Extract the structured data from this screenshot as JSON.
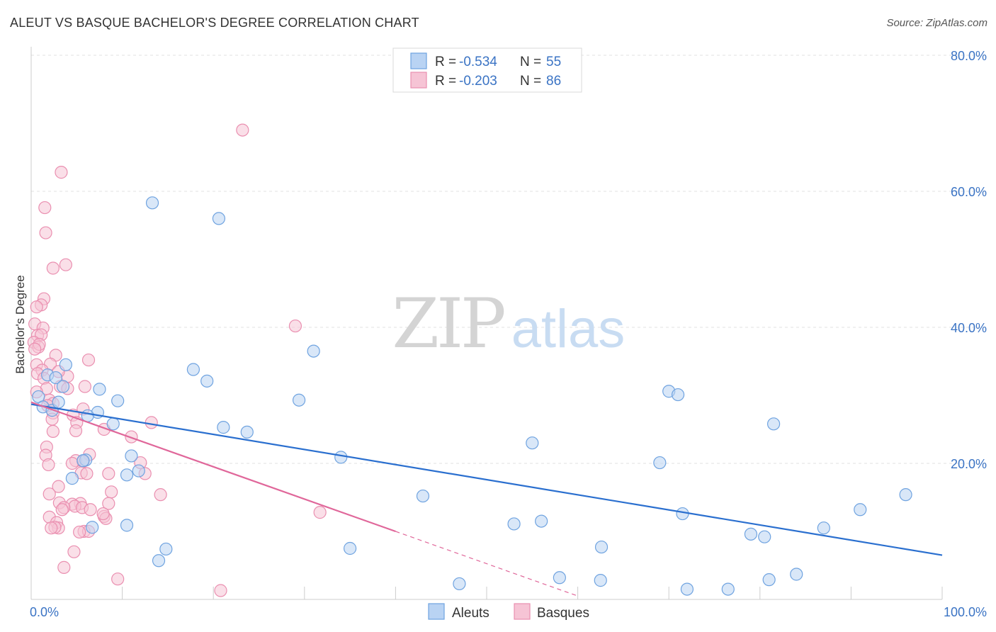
{
  "title": "ALEUT VS BASQUE BACHELOR'S DEGREE CORRELATION CHART",
  "source": "Source: ZipAtlas.com",
  "watermark": {
    "zip": "ZIP",
    "atlas": "atlas"
  },
  "chart_data": {
    "type": "scatter",
    "ylabel": "Bachelor's Degree",
    "xlim": [
      0,
      100
    ],
    "ylim": [
      0,
      80
    ],
    "x_tick_labels": [
      "0.0%",
      "100.0%"
    ],
    "y_ticks": [
      20,
      40,
      60,
      80
    ],
    "y_tick_labels": [
      "20.0%",
      "40.0%",
      "60.0%",
      "80.0%"
    ],
    "grid": true,
    "legend": {
      "placement": "top-center",
      "rows": [
        {
          "r_label": "R = ",
          "r_value": "-0.534",
          "n_label": "N = ",
          "n_value": "55"
        },
        {
          "r_label": "R = ",
          "r_value": "-0.203",
          "n_label": "N = ",
          "n_value": "86"
        }
      ]
    },
    "series": [
      {
        "name": "Aleuts",
        "color": "#6fa3e0",
        "fill": "#b9d3f3",
        "line_color": "#2a6fcf",
        "trend": {
          "x0": 0,
          "y0": 28.7,
          "x1": 100,
          "y1": 6.5
        },
        "points": [
          [
            13.3,
            58.3
          ],
          [
            20.6,
            56.0
          ],
          [
            1.8,
            33.0
          ],
          [
            3.8,
            34.5
          ],
          [
            2.7,
            32.6
          ],
          [
            3.5,
            31.3
          ],
          [
            0.8,
            29.8
          ],
          [
            1.3,
            28.3
          ],
          [
            2.3,
            27.8
          ],
          [
            3.0,
            29.0
          ],
          [
            7.5,
            30.9
          ],
          [
            9.5,
            29.2
          ],
          [
            7.3,
            27.5
          ],
          [
            6.2,
            27.0
          ],
          [
            9.0,
            25.8
          ],
          [
            17.8,
            33.8
          ],
          [
            19.3,
            32.1
          ],
          [
            21.1,
            25.3
          ],
          [
            23.7,
            24.6
          ],
          [
            29.4,
            29.3
          ],
          [
            31.0,
            36.5
          ],
          [
            34.0,
            20.9
          ],
          [
            6.0,
            20.5
          ],
          [
            11.0,
            21.1
          ],
          [
            11.8,
            18.9
          ],
          [
            10.5,
            18.3
          ],
          [
            4.5,
            17.8
          ],
          [
            10.5,
            10.9
          ],
          [
            6.7,
            10.6
          ],
          [
            14.8,
            7.4
          ],
          [
            14.0,
            5.7
          ],
          [
            35.0,
            7.5
          ],
          [
            43.0,
            15.2
          ],
          [
            47.0,
            2.3
          ],
          [
            53.0,
            11.1
          ],
          [
            55.0,
            23.0
          ],
          [
            56.0,
            11.5
          ],
          [
            58.0,
            3.2
          ],
          [
            62.5,
            2.8
          ],
          [
            62.6,
            7.7
          ],
          [
            69.0,
            20.1
          ],
          [
            70.0,
            30.6
          ],
          [
            71.0,
            30.1
          ],
          [
            71.5,
            12.6
          ],
          [
            72.0,
            1.5
          ],
          [
            76.5,
            1.5
          ],
          [
            79.0,
            9.6
          ],
          [
            80.5,
            9.2
          ],
          [
            81.5,
            25.8
          ],
          [
            81.0,
            2.9
          ],
          [
            84.0,
            3.7
          ],
          [
            87.0,
            10.5
          ],
          [
            91.0,
            13.2
          ],
          [
            96.0,
            15.4
          ],
          [
            5.7,
            20.4
          ]
        ]
      },
      {
        "name": "Basques",
        "color": "#ea8fb0",
        "fill": "#f6c4d5",
        "line_color": "#e0679a",
        "trend": {
          "x0": 0,
          "y0": 29.0,
          "x1": 40,
          "y1": 10.0
        },
        "trend_dashed": {
          "x0": 40,
          "y0": 10.0,
          "x1": 60,
          "y1": 0.5
        },
        "points": [
          [
            23.2,
            69.0
          ],
          [
            3.3,
            62.8
          ],
          [
            1.5,
            57.6
          ],
          [
            1.6,
            53.9
          ],
          [
            3.8,
            49.2
          ],
          [
            2.4,
            48.7
          ],
          [
            1.4,
            44.2
          ],
          [
            1.1,
            43.3
          ],
          [
            0.6,
            43.0
          ],
          [
            0.4,
            40.5
          ],
          [
            1.3,
            39.9
          ],
          [
            0.7,
            38.8
          ],
          [
            1.1,
            38.9
          ],
          [
            0.3,
            37.8
          ],
          [
            0.8,
            37.1
          ],
          [
            0.9,
            37.5
          ],
          [
            0.4,
            36.8
          ],
          [
            2.7,
            35.9
          ],
          [
            6.3,
            35.2
          ],
          [
            2.1,
            34.6
          ],
          [
            0.6,
            34.5
          ],
          [
            1.2,
            33.7
          ],
          [
            0.7,
            33.2
          ],
          [
            4.0,
            32.8
          ],
          [
            1.4,
            32.5
          ],
          [
            3.0,
            33.5
          ],
          [
            3.2,
            31.3
          ],
          [
            5.9,
            31.3
          ],
          [
            4.0,
            31.0
          ],
          [
            1.7,
            31.0
          ],
          [
            0.6,
            30.5
          ],
          [
            2.0,
            29.3
          ],
          [
            2.4,
            28.8
          ],
          [
            1.8,
            28.5
          ],
          [
            5.7,
            28.0
          ],
          [
            2.4,
            27.4
          ],
          [
            4.6,
            27.1
          ],
          [
            2.3,
            26.5
          ],
          [
            5.0,
            26.0
          ],
          [
            13.2,
            26.0
          ],
          [
            4.9,
            24.8
          ],
          [
            2.4,
            24.7
          ],
          [
            8.0,
            25.0
          ],
          [
            11.0,
            23.9
          ],
          [
            29.0,
            40.2
          ],
          [
            1.7,
            22.4
          ],
          [
            1.6,
            21.2
          ],
          [
            6.4,
            21.3
          ],
          [
            4.9,
            20.4
          ],
          [
            5.7,
            20.3
          ],
          [
            4.5,
            20.0
          ],
          [
            1.9,
            19.8
          ],
          [
            5.5,
            18.6
          ],
          [
            6.1,
            18.5
          ],
          [
            8.5,
            18.5
          ],
          [
            12.0,
            20.1
          ],
          [
            12.5,
            18.5
          ],
          [
            3.0,
            16.6
          ],
          [
            8.8,
            15.8
          ],
          [
            2.0,
            15.5
          ],
          [
            14.2,
            15.4
          ],
          [
            5.4,
            14.1
          ],
          [
            3.1,
            14.2
          ],
          [
            4.5,
            14.0
          ],
          [
            4.8,
            13.7
          ],
          [
            3.6,
            13.5
          ],
          [
            5.6,
            13.5
          ],
          [
            3.4,
            13.2
          ],
          [
            6.5,
            13.2
          ],
          [
            8.0,
            12.2
          ],
          [
            2.0,
            12.1
          ],
          [
            8.2,
            11.9
          ],
          [
            2.8,
            11.3
          ],
          [
            3.0,
            10.5
          ],
          [
            2.6,
            10.6
          ],
          [
            5.8,
            10.0
          ],
          [
            6.3,
            10.0
          ],
          [
            5.3,
            9.9
          ],
          [
            8.5,
            14.1
          ],
          [
            7.9,
            12.6
          ],
          [
            31.7,
            12.8
          ],
          [
            4.7,
            7.0
          ],
          [
            3.6,
            4.7
          ],
          [
            9.5,
            3.0
          ],
          [
            20.8,
            1.3
          ],
          [
            2.2,
            10.5
          ]
        ]
      }
    ]
  }
}
